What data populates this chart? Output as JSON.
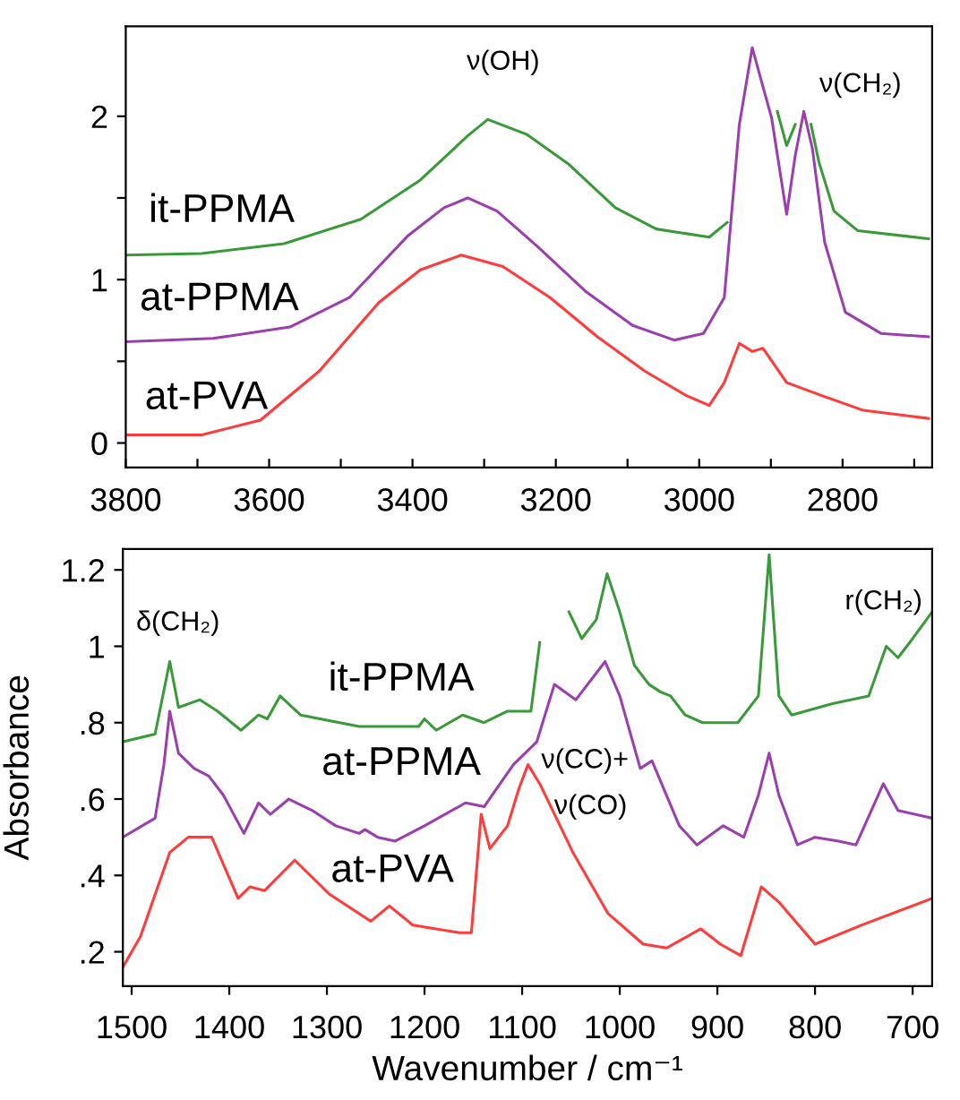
{
  "chart_data": [
    {
      "type": "line",
      "xlim": [
        3800,
        2675
      ],
      "ylim": [
        -0.15,
        2.55
      ],
      "xticks": [
        3800,
        {
          "value": 3700,
          "label": null
        },
        3600,
        {
          "value": 3500,
          "label": null
        },
        3400,
        {
          "value": 3300,
          "label": null
        },
        3200,
        {
          "value": 3100,
          "label": null
        },
        3000,
        {
          "value": 2900,
          "label": null
        },
        2800,
        {
          "value": 2700,
          "label": null
        }
      ],
      "yticks": [
        0,
        {
          "value": 0.5,
          "label": null
        },
        1,
        {
          "value": 1.5,
          "label": null
        },
        2
      ],
      "grid": false,
      "series": [
        {
          "name": "it-PPMA",
          "color": "#3a9a3a",
          "x": [
            3800,
            3694,
            3579,
            3472,
            3389,
            3323,
            3295,
            3241,
            3183,
            3117,
            3060,
            2986,
            2961,
            2936,
            2901,
            2891,
            2878,
            2866,
            2858,
            2852,
            2844,
            2833,
            2812,
            2779,
            2680
          ],
          "values": [
            1.15,
            1.16,
            1.22,
            1.37,
            1.61,
            1.88,
            1.98,
            1.89,
            1.71,
            1.44,
            1.31,
            1.26,
            1.35,
            null,
            null,
            2.03,
            1.82,
            1.95,
            null,
            null,
            1.95,
            1.72,
            1.42,
            1.3,
            1.25
          ]
        },
        {
          "name": "at-PPMA",
          "color": "#9b3fae",
          "x": [
            3800,
            3678,
            3571,
            3488,
            3406,
            3356,
            3323,
            3282,
            3225,
            3159,
            3093,
            3035,
            2994,
            2965,
            2944,
            2926,
            2911,
            2899,
            2878,
            2866,
            2854,
            2842,
            2825,
            2796,
            2746,
            2680
          ],
          "values": [
            0.62,
            0.64,
            0.71,
            0.89,
            1.27,
            1.44,
            1.5,
            1.42,
            1.2,
            0.93,
            0.72,
            0.63,
            0.67,
            0.89,
            1.95,
            2.42,
            2.18,
            1.99,
            1.4,
            1.76,
            2.03,
            1.8,
            1.23,
            0.8,
            0.67,
            0.65
          ]
        },
        {
          "name": "at-PVA",
          "color": "#ff3b3b",
          "x": [
            3800,
            3694,
            3612,
            3530,
            3447,
            3389,
            3332,
            3274,
            3208,
            3142,
            3076,
            3018,
            2986,
            2965,
            2944,
            2926,
            2911,
            2878,
            2829,
            2771,
            2680
          ],
          "values": [
            0.05,
            0.05,
            0.14,
            0.44,
            0.86,
            1.06,
            1.15,
            1.08,
            0.89,
            0.65,
            0.44,
            0.29,
            0.23,
            0.37,
            0.61,
            0.56,
            0.58,
            0.37,
            0.29,
            0.2,
            0.15
          ]
        }
      ],
      "annotations": [
        "ν(OH)",
        "ν(CH₂)"
      ]
    },
    {
      "type": "line",
      "xlabel": "Wavenumber / cm⁻¹",
      "ylabel": "Absorbance",
      "xlim": [
        1509,
        680
      ],
      "ylim": [
        0.11,
        1.255
      ],
      "xticks": [
        1500,
        1400,
        1300,
        1200,
        1100,
        1000,
        900,
        800,
        700
      ],
      "yticks": [
        {
          "value": 0.2,
          "label": ".2"
        },
        {
          "value": 0.4,
          "label": ".4"
        },
        {
          "value": 0.6,
          "label": ".6"
        },
        {
          "value": 0.8,
          "label": ".8"
        },
        1,
        1.2
      ],
      "grid": false,
      "series": [
        {
          "name": "it-PPMA",
          "color": "#3a9a3a",
          "x": [
            1509,
            1476,
            1461,
            1452,
            1430,
            1412,
            1388,
            1370,
            1361,
            1348,
            1327,
            1267,
            1206,
            1200,
            1188,
            1161,
            1139,
            1115,
            1091,
            1082,
            1073,
            1061,
            1052,
            1039,
            1024,
            1013,
            1000,
            985,
            970,
            958,
            948,
            933,
            915,
            879,
            858,
            847,
            837,
            824,
            782,
            745,
            727,
            715,
            703,
            680
          ],
          "values": [
            0.75,
            0.77,
            0.96,
            0.84,
            0.86,
            0.83,
            0.78,
            0.82,
            0.81,
            0.87,
            0.82,
            0.79,
            0.79,
            0.81,
            0.78,
            0.82,
            0.8,
            0.83,
            0.83,
            1.01,
            null,
            null,
            1.09,
            1.02,
            1.07,
            1.19,
            1.09,
            0.95,
            0.9,
            0.88,
            0.87,
            0.82,
            0.8,
            0.8,
            0.87,
            1.24,
            0.87,
            0.82,
            0.85,
            0.87,
            1.0,
            0.97,
            1.01,
            1.09
          ]
        },
        {
          "name": "at-PPMA",
          "color": "#9b3fae",
          "x": [
            1509,
            1476,
            1467,
            1461,
            1452,
            1436,
            1421,
            1406,
            1385,
            1370,
            1358,
            1339,
            1315,
            1291,
            1267,
            1261,
            1248,
            1230,
            1200,
            1158,
            1139,
            1109,
            1085,
            1067,
            1045,
            1015,
            1000,
            979,
            967,
            939,
            921,
            894,
            873,
            858,
            847,
            837,
            818,
            800,
            776,
            758,
            730,
            715,
            680
          ],
          "values": [
            0.5,
            0.55,
            0.69,
            0.83,
            0.72,
            0.68,
            0.66,
            0.61,
            0.51,
            0.59,
            0.56,
            0.6,
            0.57,
            0.53,
            0.51,
            0.52,
            0.5,
            0.49,
            0.53,
            0.59,
            0.58,
            0.69,
            0.75,
            0.9,
            0.86,
            0.96,
            0.87,
            0.68,
            0.7,
            0.53,
            0.48,
            0.53,
            0.5,
            0.61,
            0.72,
            0.61,
            0.48,
            0.5,
            0.49,
            0.48,
            0.64,
            0.57,
            0.55
          ]
        },
        {
          "name": "at-PVA",
          "color": "#ff3b3b",
          "x": [
            1509,
            1491,
            1461,
            1442,
            1418,
            1391,
            1379,
            1364,
            1333,
            1297,
            1255,
            1236,
            1212,
            1164,
            1152,
            1142,
            1133,
            1115,
            1103,
            1094,
            1082,
            1048,
            1012,
            976,
            952,
            917,
            897,
            876,
            855,
            837,
            800,
            752,
            680
          ],
          "values": [
            0.16,
            0.24,
            0.46,
            0.5,
            0.5,
            0.34,
            0.37,
            0.36,
            0.44,
            0.35,
            0.28,
            0.32,
            0.27,
            0.25,
            0.25,
            0.56,
            0.47,
            0.53,
            0.63,
            0.69,
            0.64,
            0.46,
            0.3,
            0.22,
            0.21,
            0.26,
            0.22,
            0.19,
            0.37,
            0.33,
            0.22,
            0.27,
            0.34
          ]
        }
      ],
      "annotations": [
        "δ(CH₂)",
        "ν(CC)+",
        "ν(CO)",
        "r(CH₂)"
      ]
    }
  ]
}
